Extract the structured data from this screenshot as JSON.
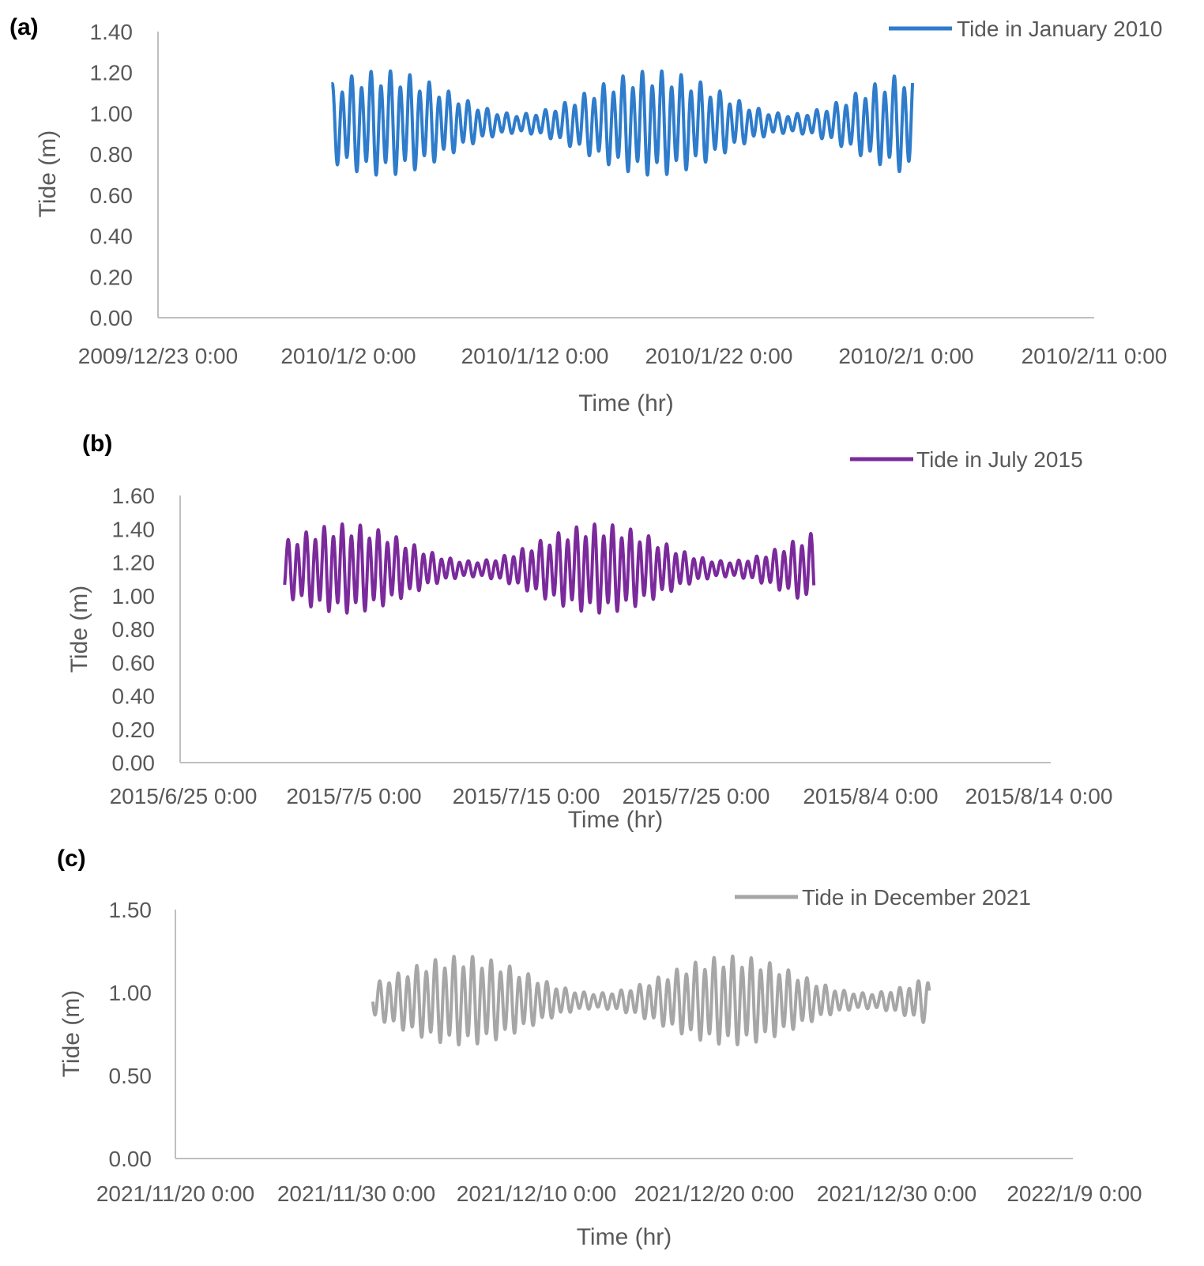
{
  "chart_data": [
    {
      "panel": "(a)",
      "type": "line",
      "title": "",
      "legend": "Tide in January 2010",
      "color": "#2E7CCB",
      "xlabel": "Time (hr)",
      "ylabel": "Tide (m)",
      "y_ticks": [
        "0.00",
        "0.20",
        "0.40",
        "0.60",
        "0.80",
        "1.00",
        "1.20",
        "1.40"
      ],
      "ylim": [
        0,
        1.4
      ],
      "x_ticks": [
        "2009/12/23 0:00",
        "2010/1/2 0:00",
        "2010/1/12 0:00",
        "2010/1/22 0:00",
        "2010/2/1 0:00",
        "2010/2/11 0:00"
      ],
      "xlim_days": [
        0,
        50
      ],
      "series": {
        "start_day": 9.3,
        "end_day": 40.3,
        "mean": 0.95,
        "spring_amp": 0.27,
        "neap_amp": 0.05,
        "first_spring_day": 12.0,
        "spring_neap_period_days": 14.5,
        "diurnal_inequality": 0.22
      }
    },
    {
      "panel": "(b)",
      "type": "line",
      "title": "",
      "legend": "Tide in July 2015",
      "color": "#7B2A9C",
      "xlabel": "Time (hr)",
      "ylabel": "Tide (m)",
      "y_ticks": [
        "0.00",
        "0.20",
        "0.40",
        "0.60",
        "0.80",
        "1.00",
        "1.20",
        "1.40",
        "1.60"
      ],
      "ylim": [
        0,
        1.6
      ],
      "x_ticks": [
        "2015/6/25 0:00",
        "2015/7/5 0:00",
        "2015/7/15 0:00",
        "2015/7/25 0:00",
        "2015/8/4 0:00",
        "2015/8/14 0:00"
      ],
      "xlim_days": [
        0,
        50
      ],
      "series": {
        "start_day": 6.0,
        "end_day": 36.4,
        "mean": 1.16,
        "spring_amp": 0.28,
        "neap_amp": 0.05,
        "first_spring_day": 9.5,
        "spring_neap_period_days": 14.6,
        "diurnal_inequality": 0.2
      }
    },
    {
      "panel": "(c)",
      "type": "line",
      "title": "",
      "legend": "Tide in December 2021",
      "color": "#A6A6A6",
      "xlabel": "Time (hr)",
      "ylabel": "Tide (m)",
      "y_ticks": [
        "0.00",
        "0.50",
        "1.00",
        "1.50"
      ],
      "ylim": [
        0,
        1.5
      ],
      "x_ticks": [
        "2021/11/20 0:00",
        "2021/11/30 0:00",
        "2021/12/10 0:00",
        "2021/12/20 0:00",
        "2021/12/30 0:00",
        "2022/1/9 0:00"
      ],
      "xlim_days": [
        0,
        50
      ],
      "series": {
        "start_day": 11.0,
        "end_day": 42.0,
        "mean": 0.95,
        "spring_amp": 0.28,
        "neap_amp": 0.05,
        "first_spring_day": 16.0,
        "spring_neap_period_days": 15.0,
        "diurnal_inequality": 0.18
      }
    }
  ]
}
